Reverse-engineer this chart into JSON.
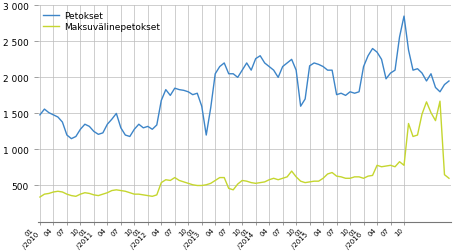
{
  "series": {
    "Petokset": [
      1480,
      1560,
      1510,
      1480,
      1450,
      1380,
      1200,
      1150,
      1180,
      1280,
      1350,
      1320,
      1250,
      1210,
      1230,
      1350,
      1420,
      1500,
      1300,
      1200,
      1180,
      1280,
      1350,
      1300,
      1320,
      1280,
      1340,
      1680,
      1830,
      1750,
      1850,
      1830,
      1820,
      1800,
      1760,
      1780,
      1600,
      1200,
      1580,
      2050,
      2150,
      2200,
      2050,
      2050,
      2000,
      2100,
      2200,
      2100,
      2260,
      2300,
      2200,
      2150,
      2100,
      2000,
      2150,
      2200,
      2250,
      2100,
      1600,
      1700,
      2160,
      2200,
      2180,
      2150,
      2100,
      2100,
      1760,
      1780,
      1750,
      1800,
      1780,
      1800,
      2150,
      2300,
      2400,
      2350,
      2250,
      1980,
      2060,
      2100,
      2560,
      2850,
      2380,
      2100,
      2120,
      2060,
      1950,
      2050,
      1860,
      1800,
      1900,
      1950
    ],
    "Maksuvalinepetokset": [
      340,
      380,
      390,
      410,
      420,
      410,
      380,
      360,
      350,
      380,
      400,
      390,
      370,
      360,
      380,
      400,
      430,
      440,
      430,
      420,
      400,
      380,
      380,
      370,
      360,
      350,
      370,
      540,
      580,
      570,
      610,
      570,
      550,
      530,
      510,
      500,
      500,
      510,
      530,
      570,
      610,
      610,
      460,
      440,
      520,
      570,
      560,
      540,
      530,
      540,
      550,
      580,
      600,
      580,
      600,
      620,
      700,
      620,
      560,
      540,
      550,
      560,
      560,
      600,
      660,
      680,
      630,
      620,
      600,
      600,
      620,
      620,
      600,
      630,
      640,
      780,
      760,
      770,
      780,
      760,
      830,
      780,
      1360,
      1180,
      1200,
      1490,
      1660,
      1510,
      1400,
      1670,
      650,
      600
    ]
  },
  "colors": {
    "Petokset": "#3d85c8",
    "Maksuvalinepetokset": "#c5d62f"
  },
  "legend_labels": [
    "Petokset",
    "Maksuvälinepetokset"
  ],
  "ylim": [
    0,
    3000
  ],
  "yticks": [
    500,
    1000,
    1500,
    2000,
    2500,
    3000
  ],
  "ytick_labels": [
    "500",
    "1 000",
    "1 500",
    "2 000",
    "2 500",
    "3 000"
  ],
  "grid_color": "#bbbbbb",
  "background_color": "#ffffff",
  "line_width": 1.0
}
